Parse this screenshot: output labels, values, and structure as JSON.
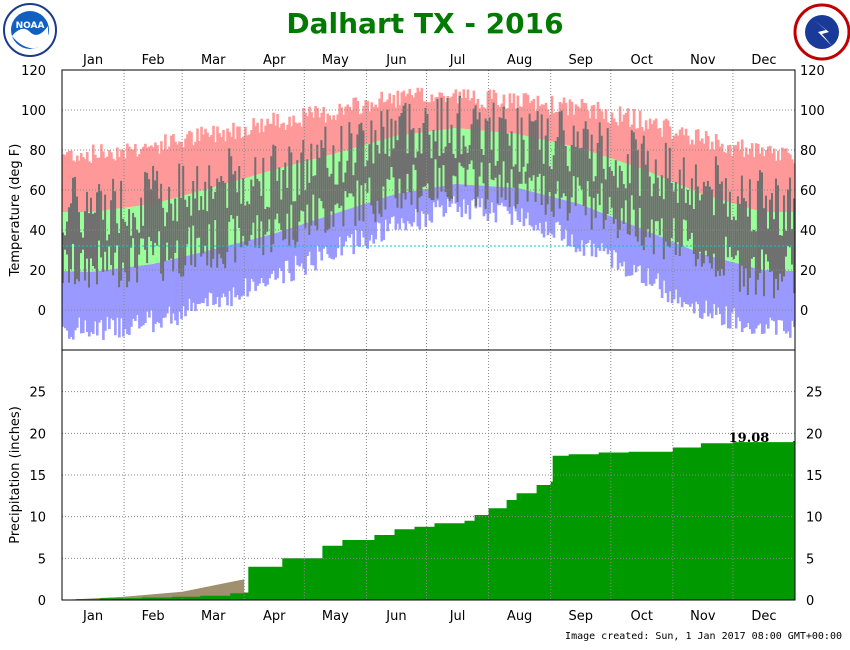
{
  "title": "Dalhart TX - 2016",
  "footer": "Image created: Sun, 1 Jan 2017 08:00 GMT+00:00",
  "logos": {
    "left": "NOAA",
    "right": "NATIONAL WEATHER SERVICE"
  },
  "colors": {
    "title": "#007a00",
    "record_range": "#ff9999",
    "normal_range": "#99ff99",
    "observed_range": "#707070",
    "record_low_band": "#9999ff",
    "freezing_line": "#00cccc",
    "precip_observed": "#009900",
    "precip_normal": "#a09070"
  },
  "chart_data": [
    {
      "type": "area",
      "panel": "temperature",
      "ylabel": "Temperature (deg F)",
      "ylim": [
        -20,
        120
      ],
      "yticks": [
        0,
        20,
        40,
        60,
        80,
        100,
        120
      ],
      "months": [
        "Jan",
        "Feb",
        "Mar",
        "Apr",
        "May",
        "Jun",
        "Jul",
        "Aug",
        "Sep",
        "Oct",
        "Nov",
        "Dec"
      ],
      "grid": true,
      "reference_line": 32,
      "x": [
        "Jan 15",
        "Feb 15",
        "Mar 15",
        "Apr 15",
        "May 15",
        "Jun 15",
        "Jul 15",
        "Aug 15",
        "Sep 15",
        "Oct 15",
        "Nov 15",
        "Dec 15"
      ],
      "series": [
        {
          "values": [
            78,
            82,
            88,
            94,
            99,
            106,
            107,
            104,
            101,
            95,
            85,
            78
          ]
        },
        {
          "values": [
            49,
            53,
            61,
            70,
            78,
            87,
            91,
            88,
            81,
            71,
            58,
            49
          ]
        },
        {
          "values": [
            19,
            23,
            30,
            38,
            48,
            58,
            63,
            61,
            53,
            41,
            28,
            20
          ]
        },
        {
          "values": [
            -10,
            -6,
            4,
            16,
            30,
            42,
            52,
            48,
            34,
            18,
            0,
            -8
          ]
        },
        {
          "values": [
            50,
            56,
            64,
            68,
            76,
            92,
            92,
            86,
            82,
            74,
            62,
            54
          ]
        },
        {
          "values": [
            22,
            26,
            32,
            40,
            50,
            60,
            64,
            62,
            55,
            44,
            28,
            18
          ]
        }
      ]
    },
    {
      "type": "area",
      "panel": "precipitation",
      "ylabel": "Precipitation (inches)",
      "ylim": [
        0,
        30
      ],
      "yticks": [
        0,
        5,
        10,
        15,
        20,
        25
      ],
      "months": [
        "Jan",
        "Feb",
        "Mar",
        "Apr",
        "May",
        "Jun",
        "Jul",
        "Aug",
        "Sep",
        "Oct",
        "Nov",
        "Dec"
      ],
      "grid": true,
      "annotation": "19.08",
      "observed_cumulative": [
        [
          "Jan 1",
          0.0
        ],
        [
          "Jan 8",
          0.1
        ],
        [
          "Jan 20",
          0.2
        ],
        [
          "Feb 10",
          0.3
        ],
        [
          "Feb 25",
          0.4
        ],
        [
          "Mar 10",
          0.5
        ],
        [
          "Mar 25",
          0.8
        ],
        [
          "Apr 1",
          0.9
        ],
        [
          "Apr 3",
          4.0
        ],
        [
          "Apr 20",
          5.0
        ],
        [
          "May 10",
          6.5
        ],
        [
          "May 20",
          7.2
        ],
        [
          "Jun 5",
          7.8
        ],
        [
          "Jun 15",
          8.5
        ],
        [
          "Jun 25",
          8.8
        ],
        [
          "Jul 5",
          9.2
        ],
        [
          "Jul 20",
          9.5
        ],
        [
          "Jul 25",
          10.2
        ],
        [
          "Aug 1",
          11.0
        ],
        [
          "Aug 10",
          12.0
        ],
        [
          "Aug 15",
          12.8
        ],
        [
          "Aug 25",
          13.8
        ],
        [
          "Sep 1",
          14.2
        ],
        [
          "Sep 2",
          17.3
        ],
        [
          "Sep 10",
          17.5
        ],
        [
          "Sep 25",
          17.7
        ],
        [
          "Oct 10",
          17.8
        ],
        [
          "Nov 1",
          18.3
        ],
        [
          "Nov 15",
          18.8
        ],
        [
          "Dec 1",
          18.95
        ],
        [
          "Dec 31",
          19.08
        ]
      ],
      "normal_cumulative": [
        [
          "Jan 1",
          0.0
        ],
        [
          "Feb 1",
          0.4
        ],
        [
          "Mar 1",
          1.0
        ],
        [
          "Apr 1",
          2.5
        ]
      ]
    }
  ]
}
